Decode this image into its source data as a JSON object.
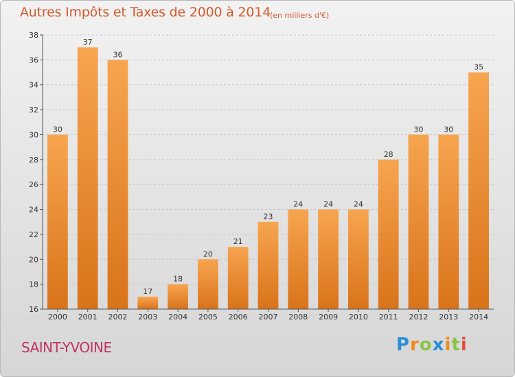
{
  "header": {
    "title": "Autres Impôts et Taxes de 2000 à 2014",
    "subtitle": "(en milliers d'€)"
  },
  "footer": {
    "commune": "SAINT-YVOINE",
    "logo_text": "Proxiti",
    "logo_letters": [
      {
        "char": "P",
        "color": "#2a8fd6"
      },
      {
        "char": "r",
        "color": "#f08a1c"
      },
      {
        "char": "o",
        "color": "#8bc34a"
      },
      {
        "char": "x",
        "color": "#2a8fd6"
      },
      {
        "char": "i",
        "color": "#f08a1c"
      },
      {
        "char": "t",
        "color": "#8bc34a"
      },
      {
        "char": "i",
        "color": "#e64a3c"
      }
    ]
  },
  "colors": {
    "bar_light": "#f7a54f",
    "bar_dark": "#d9731a",
    "title": "#d35a2b",
    "commune": "#c0335f"
  },
  "chart_data": {
    "type": "bar",
    "title": "Autres Impôts et Taxes de 2000 à 2014",
    "subtitle": "(en milliers d'€)",
    "categories": [
      "2000",
      "2001",
      "2002",
      "2003",
      "2004",
      "2005",
      "2006",
      "2007",
      "2008",
      "2009",
      "2010",
      "2011",
      "2012",
      "2013",
      "2014"
    ],
    "values": [
      30,
      37,
      36,
      17,
      18,
      20,
      21,
      23,
      24,
      24,
      24,
      28,
      30,
      30,
      35
    ],
    "ylim": [
      16,
      38
    ],
    "yticks": [
      16,
      18,
      20,
      22,
      24,
      26,
      28,
      30,
      32,
      34,
      36,
      38
    ],
    "grid": true
  }
}
